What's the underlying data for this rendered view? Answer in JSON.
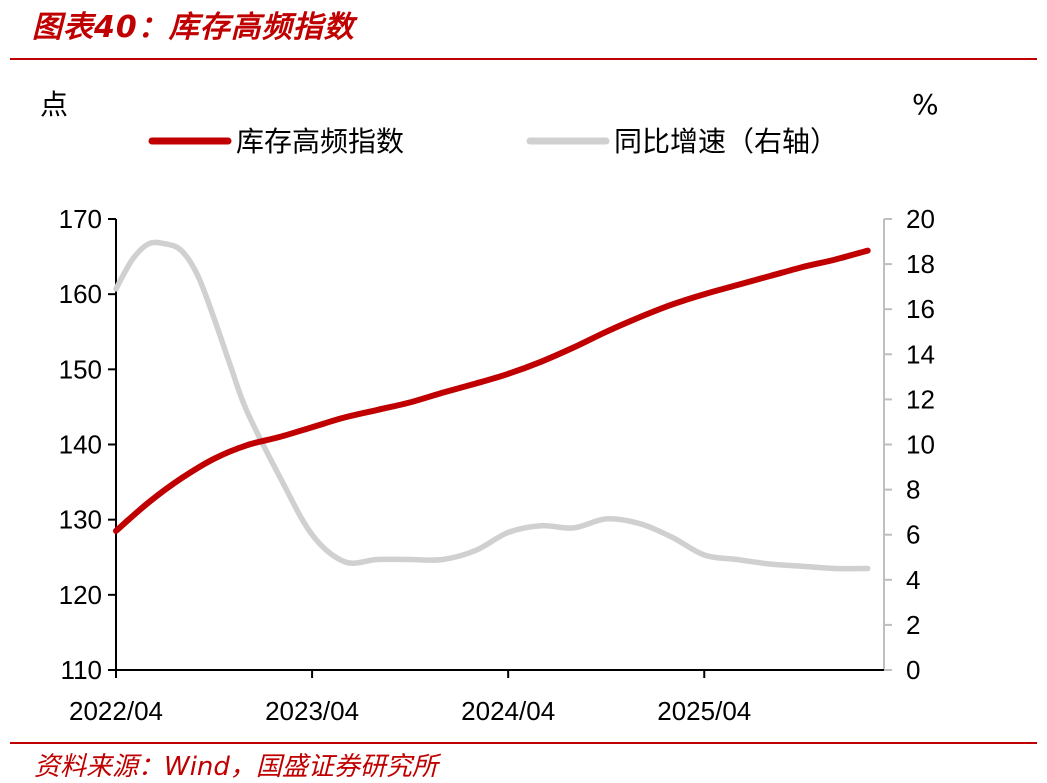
{
  "header": {
    "title": "图表40：库存高频指数"
  },
  "footer": {
    "source": "资料来源：Wind，国盛证券研究所"
  },
  "colors": {
    "accent": "#c00000",
    "primary_series": "#c00000",
    "secondary_series": "#d0d0d0"
  },
  "chart_data": {
    "type": "line",
    "title": "",
    "left_unit": "点",
    "right_unit": "%",
    "x_axis": {
      "ticks": [
        "2022/04",
        "2023/04",
        "2024/04",
        "2025/04"
      ],
      "range_months": [
        0,
        47
      ]
    },
    "y_left": {
      "ylim": [
        110,
        170
      ],
      "ticks": [
        110,
        120,
        130,
        140,
        150,
        160,
        170
      ]
    },
    "y_right": {
      "ylim": [
        0,
        20
      ],
      "ticks": [
        0,
        2,
        4,
        6,
        8,
        10,
        12,
        14,
        16,
        18,
        20
      ]
    },
    "grid": false,
    "legend_position": "top",
    "series": [
      {
        "name": "库存高频指数",
        "axis": "left",
        "color": "#c00000",
        "x": [
          "2022/04",
          "2022/06",
          "2022/08",
          "2022/10",
          "2022/12",
          "2023/02",
          "2023/04",
          "2023/06",
          "2023/08",
          "2023/10",
          "2023/12",
          "2024/02",
          "2024/04",
          "2024/06",
          "2024/08",
          "2024/10",
          "2024/12",
          "2025/02",
          "2025/04",
          "2025/06",
          "2025/08",
          "2025/10",
          "2025/12",
          "2026/02"
        ],
        "values": [
          128.5,
          132.3,
          135.5,
          138.1,
          139.9,
          141.0,
          142.3,
          143.6,
          144.6,
          145.6,
          146.9,
          148.1,
          149.4,
          151.0,
          152.9,
          155.0,
          156.9,
          158.6,
          160.0,
          161.2,
          162.4,
          163.6,
          164.6,
          165.8
        ]
      },
      {
        "name": "同比增速（右轴）",
        "axis": "right",
        "color": "#d0d0d0",
        "x": [
          "2022/04",
          "2022/05",
          "2022/06",
          "2022/07",
          "2022/08",
          "2022/09",
          "2022/10",
          "2022/11",
          "2022/12",
          "2023/02",
          "2023/04",
          "2023/06",
          "2023/08",
          "2023/10",
          "2023/12",
          "2024/02",
          "2024/04",
          "2024/06",
          "2024/08",
          "2024/10",
          "2024/12",
          "2025/02",
          "2025/04",
          "2025/06",
          "2025/08",
          "2025/10",
          "2025/12",
          "2026/02"
        ],
        "values": [
          16.9,
          18.2,
          18.9,
          18.9,
          18.6,
          17.5,
          15.6,
          13.5,
          11.5,
          8.6,
          6.0,
          4.8,
          4.9,
          4.9,
          4.9,
          5.3,
          6.1,
          6.4,
          6.3,
          6.7,
          6.5,
          5.9,
          5.1,
          4.9,
          4.7,
          4.6,
          4.5,
          4.5
        ]
      }
    ]
  }
}
